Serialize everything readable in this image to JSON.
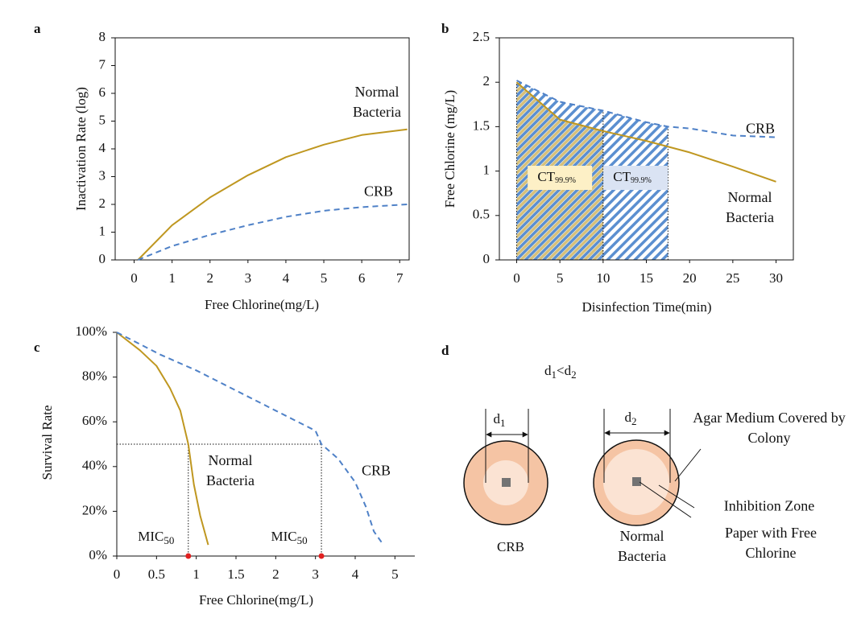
{
  "chart_data": [
    {
      "type": "line",
      "panel": "a",
      "xlabel": "Free Chlorine(mg/L)",
      "ylabel": "Inactivation Rate (log)",
      "xlim": [
        -0.5,
        7.25
      ],
      "ylim": [
        0,
        8
      ],
      "xticks": [
        0,
        1,
        2,
        3,
        4,
        5,
        6,
        7
      ],
      "yticks": [
        0,
        1,
        2,
        3,
        4,
        5,
        6,
        7,
        8
      ],
      "series": [
        {
          "name": "Normal Bacteria",
          "color": "#bf9720",
          "line_style": "solid",
          "x": [
            0.1,
            1,
            2,
            3,
            4,
            5,
            6,
            7.2
          ],
          "values": [
            0,
            1.25,
            2.25,
            3.05,
            3.7,
            4.15,
            4.5,
            4.7
          ]
        },
        {
          "name": "CRB",
          "color": "#4f81c7",
          "line_style": "dashed",
          "x": [
            0.1,
            1,
            2,
            3,
            4,
            5,
            6,
            7.2
          ],
          "values": [
            0,
            0.5,
            0.9,
            1.25,
            1.55,
            1.77,
            1.9,
            2.0
          ]
        }
      ]
    },
    {
      "type": "line",
      "panel": "b",
      "xlabel": "Disinfection Time(min)",
      "ylabel": "Free  Chlorine (mg/L)",
      "xlim": [
        -2,
        32
      ],
      "ylim": [
        0,
        2.5
      ],
      "xticks": [
        0,
        5,
        10,
        15,
        20,
        25,
        30
      ],
      "yticks": [
        0,
        0.5,
        1,
        1.5,
        2,
        2.5
      ],
      "series": [
        {
          "name": "Normal Bacteria",
          "color": "#bf9720",
          "line_style": "solid",
          "x": [
            0,
            5,
            10,
            15,
            20,
            25,
            30
          ],
          "values": [
            2.0,
            1.58,
            1.45,
            1.34,
            1.21,
            1.05,
            0.88
          ]
        },
        {
          "name": "CRB",
          "color": "#4f81c7",
          "line_style": "dashed",
          "x": [
            0,
            5,
            10,
            15,
            17.5,
            20,
            25,
            30
          ],
          "values": [
            2.02,
            1.78,
            1.68,
            1.55,
            1.5,
            1.48,
            1.4,
            1.38
          ]
        }
      ],
      "regions": [
        {
          "series": 0,
          "from": 0,
          "to": 10,
          "color": "#d6c07a",
          "box_color": "#fdf0c6",
          "label": "CT",
          "label_sub": "99.9%"
        },
        {
          "series": 1,
          "from": 10,
          "to": 17.5,
          "color": "#5b8fd0",
          "box_color": "#dae3f3",
          "label": "CT",
          "label_sub": "99.9%"
        }
      ]
    },
    {
      "type": "line",
      "panel": "c",
      "xlabel": "Free Chlorine(mg/L)",
      "ylabel": "Survival Rate",
      "x_scale": "tick-spaced",
      "xlim": [
        0,
        5.5
      ],
      "ylim": [
        0,
        100
      ],
      "xticks": [
        0,
        0.5,
        1,
        1.5,
        2,
        3,
        4,
        5
      ],
      "yticks": [
        {
          "value": 0,
          "label": "0%"
        },
        {
          "value": 20,
          "label": "20%"
        },
        {
          "value": 40,
          "label": "40%"
        },
        {
          "value": 60,
          "label": "60%"
        },
        {
          "value": 80,
          "label": "80%"
        },
        {
          "value": 100,
          "label": "100%"
        }
      ],
      "series": [
        {
          "name": "Normal Bacteria",
          "color": "#bf9720",
          "line_style": "solid",
          "x": [
            0,
            0.29,
            0.5,
            0.67,
            0.8,
            0.9,
            0.97,
            1.05,
            1.15
          ],
          "values": [
            100,
            92,
            85,
            75,
            65,
            50,
            32,
            18,
            5
          ]
        },
        {
          "name": "CRB",
          "color": "#4f81c7",
          "line_style": "dashed",
          "x": [
            0,
            0.55,
            1,
            1.5,
            2,
            3,
            3.15,
            3.57,
            4,
            4.27,
            4.47,
            4.71
          ],
          "values": [
            100,
            90,
            83,
            74,
            65,
            56,
            50,
            43.5,
            33,
            22,
            11,
            5
          ]
        }
      ],
      "markers": [
        {
          "x": 0.9,
          "y": 50,
          "color": "#e02020",
          "label": "MIC",
          "label_sub": "50"
        },
        {
          "x": 3.15,
          "y": 50,
          "color": "#e02020",
          "label": "MIC",
          "label_sub": "50"
        }
      ]
    }
  ],
  "diagram": {
    "panel": "d",
    "title": {
      "text": "d",
      "sub": "1",
      "text2": "<d",
      "sub2": "2"
    },
    "dishes": [
      {
        "diameter": "d",
        "diameter_sub": "1",
        "label": "CRB"
      },
      {
        "diameter": "d",
        "diameter_sub": "2",
        "label": "Normal Bacteria"
      }
    ],
    "callouts": [
      "Agar Medium Covered by Colony",
      "Inhibition Zone",
      "Paper with Free Chlorine"
    ]
  }
}
